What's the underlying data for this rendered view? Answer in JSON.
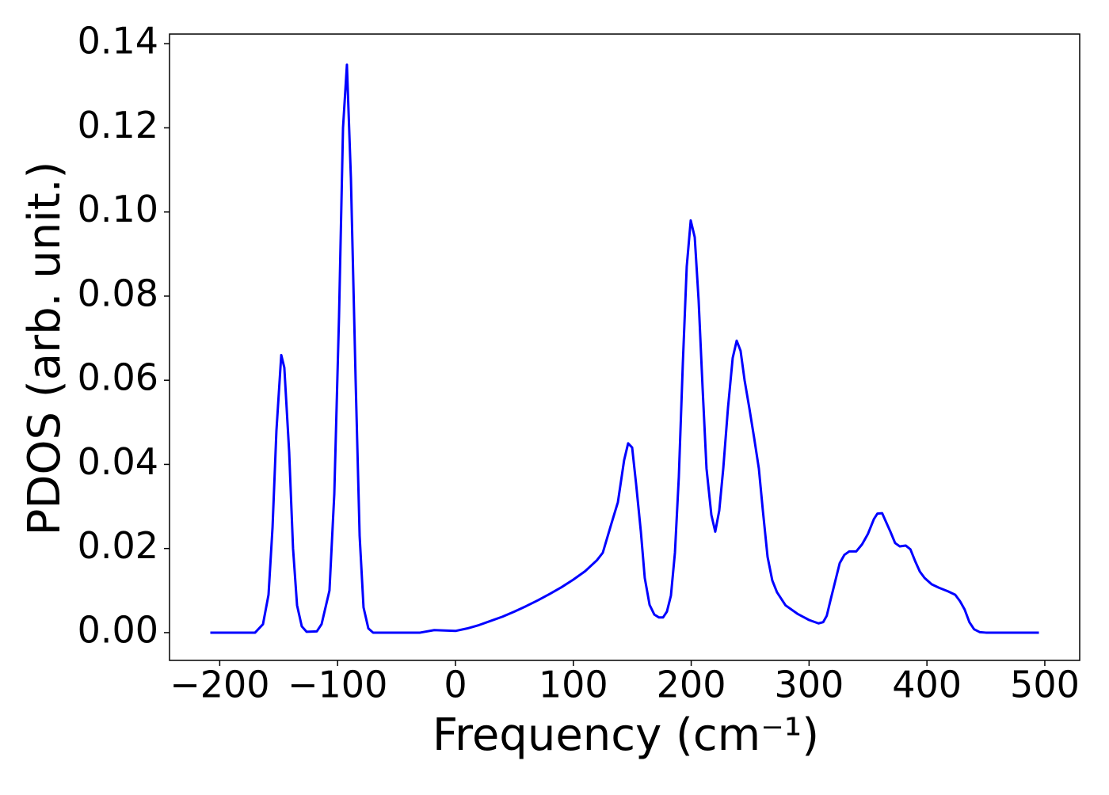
{
  "chart_data": {
    "type": "line",
    "xlabel": "Frequency (cm⁻¹)",
    "ylabel": "PDOS (arb. unit.)",
    "x": [
      -208,
      -170,
      -163.3,
      -158.6,
      -155.2,
      -151.9,
      -147.8,
      -145.2,
      -141.1,
      -137.8,
      -134.4,
      -130.4,
      -126.3,
      -117.6,
      -113.6,
      -106.9,
      -102.8,
      -98.8,
      -95.4,
      -92.1,
      -88.7,
      -84.7,
      -81.3,
      -78,
      -73.9,
      -69.9,
      -30,
      -18,
      0,
      10,
      20,
      30,
      40,
      50,
      60,
      70,
      80,
      90,
      100,
      110,
      120,
      125,
      132.4,
      137.8,
      143.1,
      146.5,
      149.9,
      153.2,
      157.3,
      160.6,
      164.7,
      168.7,
      172.7,
      176.1,
      179.4,
      182.8,
      186.2,
      189.5,
      192.9,
      196.2,
      199.6,
      203,
      206.3,
      209.7,
      213,
      217.1,
      220.4,
      223.8,
      227.2,
      231.2,
      235.2,
      238.6,
      241.9,
      245.3,
      249.3,
      253.4,
      257.4,
      260.8,
      264.8,
      268.8,
      272.8,
      280,
      290,
      300,
      308,
      312,
      315,
      318,
      322,
      326,
      330,
      334,
      340,
      345,
      350,
      355,
      358,
      362,
      365,
      369,
      373,
      377,
      382,
      386,
      390,
      394,
      398,
      404,
      410,
      418,
      424,
      428,
      432,
      436,
      440,
      445,
      450,
      495
    ],
    "series": [
      {
        "color": "#0000ff",
        "values": [
          0,
          0,
          0.002,
          0.009,
          0.025,
          0.048,
          0.066,
          0.063,
          0.043,
          0.02,
          0.0065,
          0.0015,
          0.0002,
          0.0003,
          0.002,
          0.01,
          0.033,
          0.075,
          0.12,
          0.135,
          0.108,
          0.06,
          0.023,
          0.006,
          0.001,
          0,
          0,
          0.0006,
          0.0004,
          0.001,
          0.0018,
          0.0028,
          0.0038,
          0.005,
          0.0063,
          0.0077,
          0.0092,
          0.0108,
          0.0126,
          0.0146,
          0.0172,
          0.019,
          0.026,
          0.031,
          0.041,
          0.045,
          0.044,
          0.0355,
          0.024,
          0.013,
          0.0066,
          0.0043,
          0.0036,
          0.0036,
          0.005,
          0.0088,
          0.019,
          0.037,
          0.064,
          0.087,
          0.098,
          0.094,
          0.079,
          0.058,
          0.039,
          0.028,
          0.024,
          0.029,
          0.039,
          0.0534,
          0.0653,
          0.0694,
          0.067,
          0.06,
          0.0534,
          0.0463,
          0.039,
          0.029,
          0.018,
          0.0124,
          0.0096,
          0.0065,
          0.0045,
          0.003,
          0.0022,
          0.0025,
          0.004,
          0.0075,
          0.012,
          0.0165,
          0.0185,
          0.0193,
          0.0193,
          0.021,
          0.0235,
          0.027,
          0.0283,
          0.0284,
          0.0265,
          0.024,
          0.0213,
          0.0205,
          0.0207,
          0.0198,
          0.017,
          0.0145,
          0.013,
          0.0115,
          0.0107,
          0.0098,
          0.009,
          0.0075,
          0.0055,
          0.0025,
          0.0008,
          0.0001,
          0,
          0
        ]
      }
    ],
    "xlim": [
      -242.6,
      529.6
    ],
    "ylim": [
      -0.0066,
      0.1423
    ],
    "xticks": [
      {
        "value": -200,
        "label": "−200"
      },
      {
        "value": -100,
        "label": "−100"
      },
      0,
      100,
      200,
      300,
      400,
      500
    ],
    "yticks": [
      {
        "value": 0,
        "label": "0.00"
      },
      {
        "value": 0.02,
        "label": "0.02"
      },
      {
        "value": 0.04,
        "label": "0.04"
      },
      {
        "value": 0.06,
        "label": "0.06"
      },
      {
        "value": 0.08,
        "label": "0.08"
      },
      {
        "value": 0.1,
        "label": "0.10"
      },
      {
        "value": 0.12,
        "label": "0.12"
      },
      {
        "value": 0.14,
        "label": "0.14"
      }
    ],
    "grid": false
  }
}
